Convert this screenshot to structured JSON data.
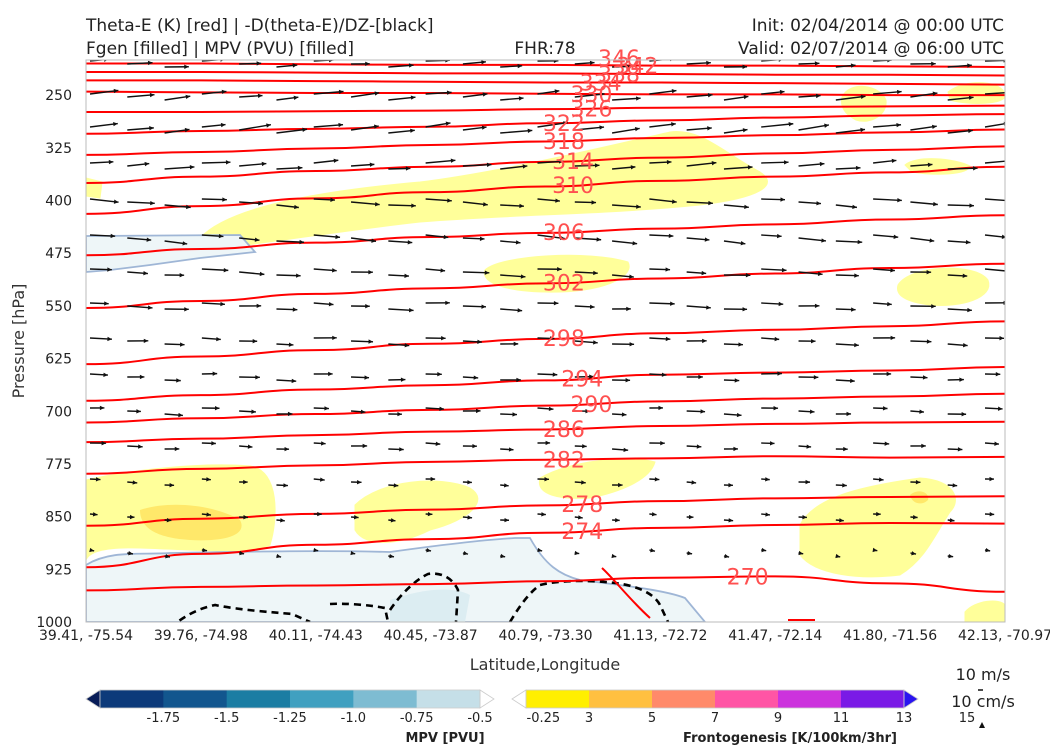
{
  "header": {
    "title_left_1": "Theta-E (K) [red] | -D(theta-E)/DZ-[black]",
    "title_left_2": "Fgen [filled] | MPV (PVU) [filled]",
    "title_center": "FHR:78",
    "title_right_1": "Init: 02/04/2014 @ 00:00 UTC",
    "title_right_2": "Valid: 02/07/2014 @ 06:00 UTC"
  },
  "chart_data": {
    "type": "cross-section",
    "xlabel": "Latitude,Longitude",
    "ylabel": "Pressure [hPa]",
    "x_ticks": [
      "39.41, -75.54",
      "39.76, -74.98",
      "40.11, -74.43",
      "40.45, -73.87",
      "40.79, -73.30",
      "41.13, -72.72",
      "41.47, -72.14",
      "41.80, -71.56",
      "42.13, -70.97"
    ],
    "y_ticks": [
      250,
      325,
      400,
      475,
      550,
      625,
      700,
      775,
      850,
      925,
      1000
    ],
    "ylim": [
      1000,
      200
    ],
    "theta_e_contours": [
      {
        "label": "346",
        "values": [
          195,
          196,
          197,
          198,
          198,
          197,
          198,
          199,
          199
        ]
      },
      {
        "label": "342",
        "values": [
          205,
          205,
          206,
          207,
          207,
          208,
          208,
          209,
          210
        ]
      },
      {
        "label": "338",
        "values": [
          217,
          217,
          218,
          219,
          219,
          220,
          221,
          221,
          222
        ]
      },
      {
        "label": "334",
        "values": [
          229,
          229,
          230,
          231,
          232,
          232,
          233,
          234,
          235
        ]
      },
      {
        "label": "330",
        "values": [
          245,
          246,
          247,
          247,
          248,
          249,
          249,
          250,
          250
        ]
      },
      {
        "label": "326",
        "values": [
          274,
          274,
          273,
          272,
          270,
          268,
          267,
          266,
          265
        ]
      },
      {
        "label": "322",
        "values": [
          305,
          301,
          298,
          295,
          290,
          286,
          282,
          279,
          277
        ]
      },
      {
        "label": "318",
        "values": [
          335,
          331,
          326,
          321,
          316,
          311,
          307,
          303,
          299
        ]
      },
      {
        "label": "314",
        "values": [
          375,
          366,
          358,
          352,
          345,
          339,
          333,
          328,
          323
        ]
      },
      {
        "label": "310",
        "values": [
          419,
          408,
          397,
          388,
          380,
          372,
          366,
          360,
          352
        ]
      },
      {
        "label": "306",
        "values": [
          478,
          469,
          460,
          452,
          446,
          440,
          434,
          427,
          421
        ]
      },
      {
        "label": "302",
        "values": [
          553,
          543,
          533,
          525,
          518,
          511,
          504,
          496,
          490
        ]
      },
      {
        "label": "298",
        "values": [
          633,
          622,
          613,
          604,
          597,
          589,
          584,
          579,
          572
        ]
      },
      {
        "label": "294",
        "values": [
          685,
          677,
          669,
          663,
          656,
          648,
          645,
          642,
          637
        ]
      },
      {
        "label": "290",
        "values": [
          716,
          710,
          704,
          698,
          692,
          686,
          682,
          679,
          675
        ]
      },
      {
        "label": "286",
        "values": [
          744,
          739,
          734,
          729,
          726,
          721,
          718,
          716,
          715
        ]
      },
      {
        "label": "282",
        "values": [
          789,
          782,
          777,
          772,
          769,
          767,
          764,
          766,
          765
        ]
      },
      {
        "label": "278",
        "values": [
          863,
          853,
          846,
          840,
          834,
          828,
          824,
          822,
          821
        ]
      },
      {
        "label": "274",
        "values": [
          922,
          903,
          890,
          882,
          873,
          866,
          862,
          859,
          860
        ]
      },
      {
        "label": "270",
        "values": [
          955,
          950,
          948,
          946,
          942,
          937,
          935,
          945,
          957
        ]
      }
    ],
    "mpv_colorbar": {
      "label": "MPV [PVU]",
      "ticks": [
        "-1.75",
        "-1.5",
        "-1.25",
        "-1.0",
        "-0.75",
        "-0.5",
        "-0.25"
      ],
      "colors": [
        "#081d58",
        "#0c3a7a",
        "#12568e",
        "#1b7da3",
        "#40a0c0",
        "#7ebcd2",
        "#c5dfe8",
        "#ffffff"
      ]
    },
    "fgen_colorbar": {
      "label": "Frontogenesis [K/100km/3hr]",
      "ticks": [
        "3",
        "5",
        "7",
        "9",
        "11",
        "13",
        "15"
      ],
      "colors": [
        "#ffffff",
        "#ffef00",
        "#ffc040",
        "#ff8a6a",
        "#ff55a5",
        "#cc33dd",
        "#7a1ae6",
        "#2a14f0"
      ]
    },
    "vector_reference": {
      "horizontal": "10 m/s",
      "vertical": "10 cm/s"
    },
    "colors": {
      "theta_e": "#ff0000",
      "theta_e_label": "#ff5050",
      "wind_vectors": "#111111",
      "mpv_outline": "#9fb6d6",
      "fgen_fill": "#ffff9a",
      "stability_dashed": "#000000"
    }
  }
}
